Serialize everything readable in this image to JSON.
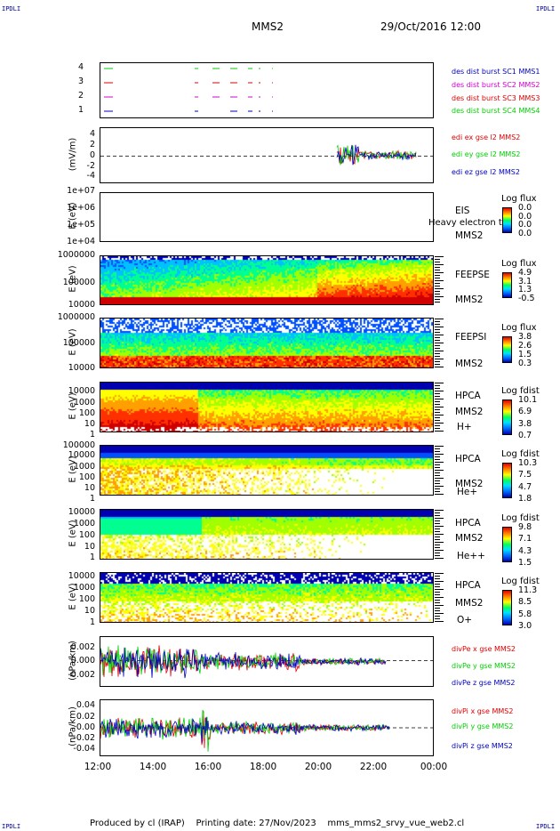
{
  "corners": {
    "tl": "IPDLI",
    "tr": "IPDLI",
    "bl": "IPDLI",
    "br": "IPDLI"
  },
  "header": {
    "mission": "MMS2",
    "date": "29/Oct/2016 12:00"
  },
  "footer": {
    "produced": "Produced by cl (IRAP)",
    "printing": "Printing date: 27/Nov/2023",
    "file": "mms_mms2_srvy_vue_web2.cl"
  },
  "colors": {
    "red": "#e00000",
    "green": "#00d000",
    "blue": "#0000c0",
    "magenta": "#d000d0",
    "accent_label": "#0000a0"
  },
  "chart_data": [
    {
      "type": "line",
      "panel": "burst",
      "yticks": [
        "4",
        "3",
        "2",
        "1"
      ],
      "legend": [
        "des dist burst SC1 MMS1",
        "des dist burst SC2 MMS2",
        "des dist burst SC3 MMS3",
        "des dist burst SC4 MMS4"
      ]
    },
    {
      "type": "line",
      "panel": "edi",
      "ylabel": "(mV/m)",
      "yticks": [
        "4",
        "2",
        "0",
        "-2",
        "-4"
      ],
      "ylim": [
        -5,
        5
      ],
      "legend": [
        "edi ex gse l2 MMS2",
        "edi ey gse l2 MMS2",
        "edi ez gse l2 MMS2"
      ]
    },
    {
      "type": "heatmap",
      "panel": "eis",
      "ylabel": "E (eV)",
      "yticks": [
        "1e+07",
        "1e+06",
        "1e+05",
        "1e+04"
      ],
      "instrument": [
        "EIS",
        "MMS2"
      ],
      "overlay": "Heavy electron tof",
      "cbar_title": "Log flux",
      "cbar": [
        "0.0",
        "0.0",
        "0.0",
        "0.0"
      ]
    },
    {
      "type": "heatmap",
      "panel": "feepse",
      "ylabel": "E (eV)",
      "yticks": [
        "1000000",
        "100000",
        "10000"
      ],
      "instrument": [
        "FEEPSE",
        "MMS2"
      ],
      "cbar_title": "Log flux",
      "cbar": [
        "4.9",
        "3.1",
        "1.3",
        "-0.5"
      ]
    },
    {
      "type": "heatmap",
      "panel": "feepsi",
      "ylabel": "E (eV)",
      "yticks": [
        "1000000",
        "100000",
        "10000"
      ],
      "instrument": [
        "FEEPSI",
        "MMS2"
      ],
      "cbar_title": "Log flux",
      "cbar": [
        "3.8",
        "2.6",
        "1.5",
        "0.3"
      ]
    },
    {
      "type": "heatmap",
      "panel": "hpca_h",
      "ylabel": "E (eV)",
      "yticks": [
        "10000",
        "1000",
        "100",
        "10",
        "1"
      ],
      "instrument": [
        "HPCA",
        "MMS2",
        "H+"
      ],
      "cbar_title": "Log fdist",
      "cbar": [
        "10.1",
        "6.9",
        "3.8",
        "0.7"
      ]
    },
    {
      "type": "heatmap",
      "panel": "hpca_he1",
      "ylabel": "E (eV)",
      "yticks": [
        "100000",
        "10000",
        "1000",
        "100",
        "10",
        "1"
      ],
      "instrument": [
        "HPCA",
        "MMS2",
        "He+"
      ],
      "cbar_title": "Log fdist",
      "cbar": [
        "10.3",
        "7.5",
        "4.7",
        "1.8"
      ]
    },
    {
      "type": "heatmap",
      "panel": "hpca_he2",
      "ylabel": "E (eV)",
      "yticks": [
        "10000",
        "1000",
        "100",
        "10",
        "1"
      ],
      "instrument": [
        "HPCA",
        "MMS2",
        "He++"
      ],
      "cbar_title": "Log fdist",
      "cbar": [
        "9.8",
        "7.1",
        "4.3",
        "1.5"
      ]
    },
    {
      "type": "heatmap",
      "panel": "hpca_o",
      "ylabel": "E (eV)",
      "yticks": [
        "10000",
        "1000",
        "100",
        "10",
        "1"
      ],
      "instrument": [
        "HPCA",
        "MMS2",
        "O+"
      ],
      "cbar_title": "Log fdist",
      "cbar": [
        "11.3",
        "8.5",
        "5.8",
        "3.0"
      ]
    },
    {
      "type": "line",
      "panel": "divpe",
      "ylabel": "(nPa/km)",
      "yticks": [
        "0.002",
        "0.000",
        "-0.002"
      ],
      "legend": [
        "divPe x gse MMS2",
        "divPe y gse MMS2",
        "divPe z gse MMS2"
      ]
    },
    {
      "type": "line",
      "panel": "divpi",
      "ylabel": "(nPa/km)",
      "yticks": [
        "0.04",
        "0.02",
        "0.00",
        "-0.02",
        "-0.04"
      ],
      "legend": [
        "divPi x gse MMS2",
        "divPi y gse MMS2",
        "divPi z gse MMS2"
      ]
    },
    {
      "type": "axis",
      "xticks": [
        "12:00",
        "14:00",
        "16:00",
        "18:00",
        "20:00",
        "22:00",
        "00:00"
      ]
    }
  ]
}
